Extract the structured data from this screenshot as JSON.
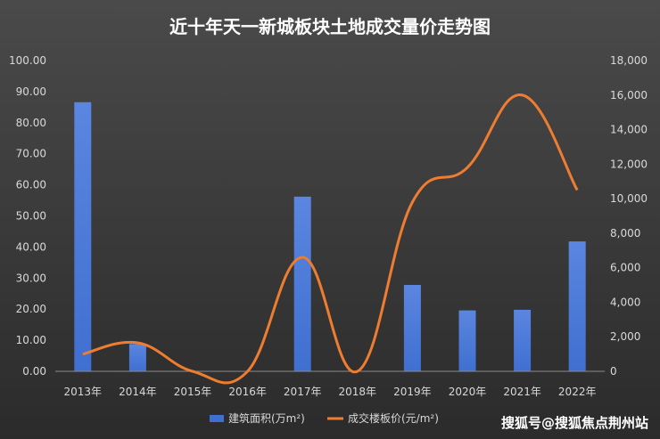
{
  "chart_data": {
    "type": "bar",
    "title": "近十年天一新城板块土地成交量价走势图",
    "categories": [
      "2013年",
      "2014年",
      "2015年",
      "2016年",
      "2017年",
      "2018年",
      "2019年",
      "2020年",
      "2021年",
      "2022年"
    ],
    "series": [
      {
        "name": "建筑面积(万m²)",
        "type": "bar",
        "axis": "left",
        "values": [
          86.6,
          8.8,
          0,
          0,
          56.2,
          0,
          27.8,
          19.6,
          19.8,
          41.8
        ]
      },
      {
        "name": "成交楼板价(元/m²)",
        "type": "line",
        "axis": "right",
        "values": [
          1000,
          1650,
          0,
          0,
          6600,
          0,
          9800,
          11800,
          16000,
          10500
        ]
      }
    ],
    "y_left": {
      "ylim": [
        0,
        100
      ],
      "ticks": [
        "0.00",
        "10.00",
        "20.00",
        "30.00",
        "40.00",
        "50.00",
        "60.00",
        "70.00",
        "80.00",
        "90.00",
        "100.00"
      ]
    },
    "y_right": {
      "ylim": [
        0,
        18000
      ],
      "ticks": [
        "0",
        "2,000",
        "4,000",
        "6,000",
        "8,000",
        "10,000",
        "12,000",
        "14,000",
        "16,000",
        "18,000"
      ]
    },
    "grid": false,
    "legend": "bottom"
  },
  "watermark": "搜狐号@搜狐焦点荆州站",
  "colors": {
    "background_top": "#4a4a4a",
    "background_bottom": "#2b2b2b",
    "bar": "#3f6fd0",
    "line": "#ee7d31",
    "text": "#d9d9d9",
    "title": "#ffffff"
  }
}
